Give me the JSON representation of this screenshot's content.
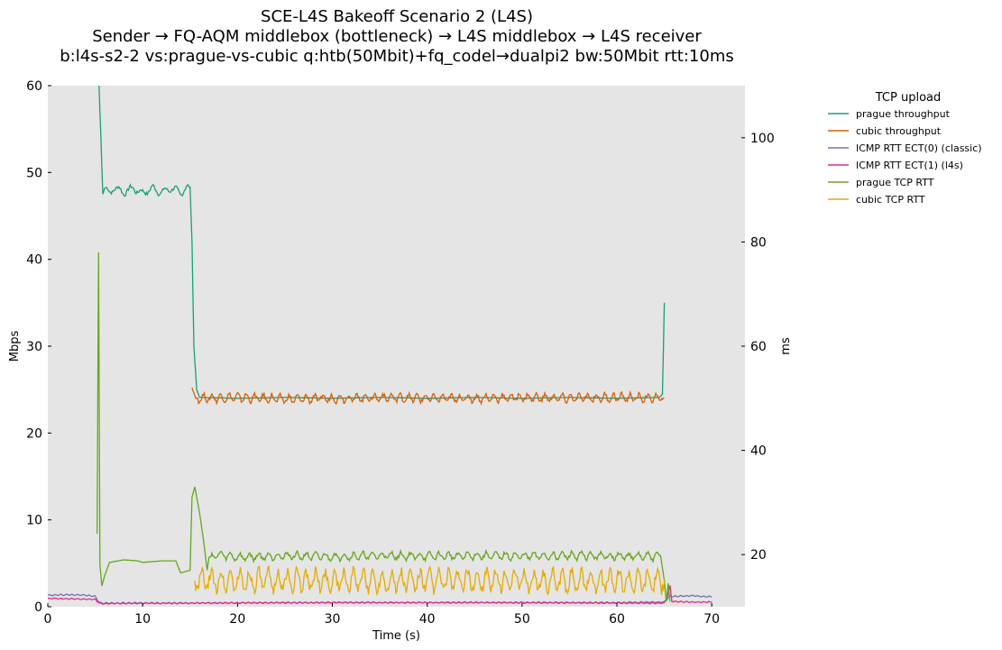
{
  "chart_data": {
    "type": "line",
    "title_lines": [
      "SCE-L4S Bakeoff Scenario 2 (L4S)",
      "Sender → FQ-AQM middlebox (bottleneck) → L4S middlebox → L4S receiver",
      "b:l4s-s2-2 vs:prague-vs-cubic q:htb(50Mbit)+fq_codel→dualpi2 bw:50Mbit rtt:10ms"
    ],
    "xlabel": "Time (s)",
    "ylabel_left": "Mbps",
    "ylabel_right": "ms",
    "xlim": [
      0,
      73.5
    ],
    "ylim_left": [
      0,
      60
    ],
    "ylim_right": [
      10,
      110
    ],
    "xticks": [
      0,
      10,
      20,
      30,
      40,
      50,
      60,
      70
    ],
    "yticks_left": [
      0,
      10,
      20,
      30,
      40,
      50,
      60
    ],
    "yticks_right": [
      20,
      40,
      60,
      80,
      100
    ],
    "grid": false,
    "legend": {
      "title": "TCP upload",
      "placement": "outside-top-right",
      "entries": [
        {
          "label": "prague throughput",
          "color": "#1b9e77"
        },
        {
          "label": "cubic throughput",
          "color": "#d95f02"
        },
        {
          "label": "ICMP RTT ECT(0) (classic)",
          "color": "#7570b3"
        },
        {
          "label": "ICMP RTT ECT(1) (l4s)",
          "color": "#e7298a"
        },
        {
          "label": "prague TCP RTT",
          "color": "#66a61e"
        },
        {
          "label": "cubic TCP RTT",
          "color": "#e6ab02"
        }
      ]
    },
    "series": [
      {
        "name": "prague throughput",
        "axis": "left",
        "color": "#1b9e77",
        "points": [
          [
            5.4,
            60
          ],
          [
            5.6,
            54
          ],
          [
            5.8,
            47.5
          ],
          [
            6.0,
            48.2
          ],
          [
            6.5,
            47.6
          ],
          [
            7,
            48.3
          ],
          [
            8,
            47.7
          ],
          [
            9,
            48.2
          ],
          [
            10,
            47.6
          ],
          [
            11,
            48.2
          ],
          [
            12,
            47.7
          ],
          [
            13,
            48.2
          ],
          [
            14,
            47.7
          ],
          [
            15,
            48.3
          ],
          [
            15.2,
            42
          ],
          [
            15.4,
            30
          ],
          [
            15.7,
            25
          ],
          [
            16,
            24.1
          ],
          [
            20,
            24.0
          ],
          [
            25,
            24.1
          ],
          [
            30,
            24.0
          ],
          [
            35,
            24.1
          ],
          [
            40,
            24.0
          ],
          [
            45,
            24.1
          ],
          [
            50,
            24.0
          ],
          [
            55,
            24.1
          ],
          [
            60,
            24.0
          ],
          [
            64.5,
            24.1
          ],
          [
            64.8,
            24.5
          ],
          [
            65.0,
            35
          ]
        ],
        "wobble": 0.5,
        "wobble_period": 0.6,
        "wobble_from": 6,
        "wobble_to": 15
      },
      {
        "name": "cubic throughput",
        "axis": "left",
        "color": "#d95f02",
        "points": [
          [
            15.2,
            25.2
          ],
          [
            15.6,
            24.0
          ],
          [
            20,
            24.1
          ],
          [
            25,
            23.9
          ],
          [
            30,
            24.0
          ],
          [
            35,
            24.1
          ],
          [
            40,
            24.0
          ],
          [
            45,
            24.0
          ],
          [
            50,
            24.1
          ],
          [
            55,
            24.0
          ],
          [
            60,
            24.1
          ],
          [
            65,
            24.0
          ]
        ],
        "wobble": 0.6,
        "wobble_period": 0.45,
        "wobble_from": 15.8,
        "wobble_to": 65
      },
      {
        "name": "ICMP RTT ECT(0) (classic)",
        "axis": "right",
        "color": "#7570b3",
        "points": [
          [
            0,
            12.2
          ],
          [
            2,
            12.3
          ],
          [
            4,
            12.2
          ],
          [
            5,
            12.0
          ],
          [
            5.5,
            10.7
          ],
          [
            15,
            10.7
          ],
          [
            30,
            10.8
          ],
          [
            45,
            10.8
          ],
          [
            60,
            10.8
          ],
          [
            65,
            10.9
          ],
          [
            65.5,
            12.0
          ],
          [
            68,
            12.1
          ],
          [
            70,
            11.9
          ]
        ],
        "wobble": 0.15,
        "wobble_period": 0.3,
        "wobble_from": 0,
        "wobble_to": 70
      },
      {
        "name": "ICMP RTT ECT(1) (l4s)",
        "axis": "right",
        "color": "#e7298a",
        "points": [
          [
            0,
            11.6
          ],
          [
            3,
            11.5
          ],
          [
            5,
            11.4
          ],
          [
            5.5,
            10.6
          ],
          [
            15,
            10.7
          ],
          [
            30,
            10.8
          ],
          [
            45,
            10.8
          ],
          [
            60,
            10.7
          ],
          [
            65,
            10.7
          ],
          [
            65.4,
            12.5
          ],
          [
            65.6,
            14.0
          ],
          [
            65.8,
            11.0
          ],
          [
            68,
            10.9
          ],
          [
            70,
            10.9
          ]
        ],
        "wobble": 0.12,
        "wobble_period": 0.3,
        "wobble_from": 0,
        "wobble_to": 70
      },
      {
        "name": "prague TCP RTT",
        "axis": "right",
        "color": "#66a61e",
        "points": [
          [
            5.2,
            24
          ],
          [
            5.35,
            78
          ],
          [
            5.5,
            18
          ],
          [
            5.7,
            14
          ],
          [
            6,
            16
          ],
          [
            6.5,
            18.5
          ],
          [
            8,
            19
          ],
          [
            9.5,
            18.8
          ],
          [
            10,
            18.5
          ],
          [
            12,
            18.8
          ],
          [
            13.5,
            18.8
          ],
          [
            14,
            16.5
          ],
          [
            15,
            17
          ],
          [
            15.2,
            31
          ],
          [
            15.5,
            33
          ],
          [
            16,
            28
          ],
          [
            16.4,
            23
          ],
          [
            16.8,
            17
          ],
          [
            17,
            19.5
          ],
          [
            18,
            20
          ],
          [
            20,
            19.5
          ],
          [
            25,
            19.8
          ],
          [
            30,
            19.6
          ],
          [
            35,
            19.8
          ],
          [
            40,
            19.7
          ],
          [
            45,
            19.8
          ],
          [
            50,
            19.7
          ],
          [
            55,
            19.8
          ],
          [
            60,
            19.7
          ],
          [
            64,
            19.6
          ],
          [
            64.6,
            19.8
          ],
          [
            65,
            15
          ],
          [
            65.2,
            11
          ],
          [
            65.4,
            14.5
          ],
          [
            65.6,
            11
          ]
        ],
        "wobble": 0.9,
        "wobble_period": 0.5,
        "wobble_from": 17.2,
        "wobble_to": 64.5
      },
      {
        "name": "cubic TCP RTT",
        "axis": "right",
        "color": "#e6ab02",
        "points": [
          [
            15.5,
            15
          ],
          [
            20,
            15
          ],
          [
            25,
            15
          ],
          [
            30,
            15
          ],
          [
            35,
            15
          ],
          [
            40,
            15
          ],
          [
            45,
            15
          ],
          [
            50,
            15
          ],
          [
            55,
            15
          ],
          [
            60,
            15
          ],
          [
            65,
            15
          ]
        ],
        "wobble": 2.6,
        "wobble_period": 0.5,
        "wobble_from": 15.5,
        "wobble_to": 65
      }
    ]
  }
}
